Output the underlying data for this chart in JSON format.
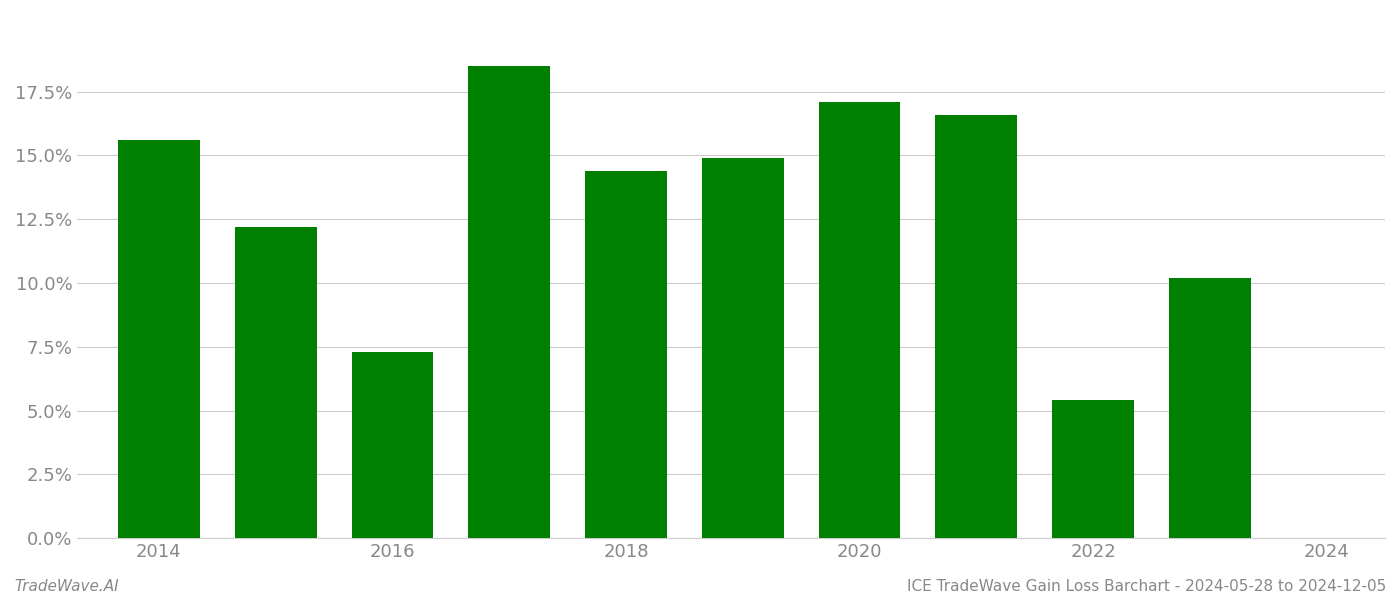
{
  "years": [
    2014,
    2015,
    2016,
    2017,
    2018,
    2019,
    2020,
    2021,
    2022,
    2023
  ],
  "values": [
    0.156,
    0.122,
    0.073,
    0.185,
    0.144,
    0.149,
    0.171,
    0.166,
    0.054,
    0.102
  ],
  "bar_color": "#008000",
  "background_color": "#ffffff",
  "grid_color": "#cccccc",
  "ytick_values": [
    0.0,
    0.025,
    0.05,
    0.075,
    0.1,
    0.125,
    0.15,
    0.175
  ],
  "ylim": [
    0,
    0.205
  ],
  "xtick_positions": [
    2014,
    2016,
    2018,
    2020,
    2022,
    2024
  ],
  "xtick_labels": [
    "2014",
    "2016",
    "2018",
    "2020",
    "2022",
    "2024"
  ],
  "xlim": [
    2013.3,
    2024.5
  ],
  "footer_left": "TradeWave.AI",
  "footer_right": "ICE TradeWave Gain Loss Barchart - 2024-05-28 to 2024-12-05",
  "footer_fontsize": 11,
  "tick_label_color": "#888888",
  "axis_label_color": "#888888",
  "bar_width": 0.7
}
